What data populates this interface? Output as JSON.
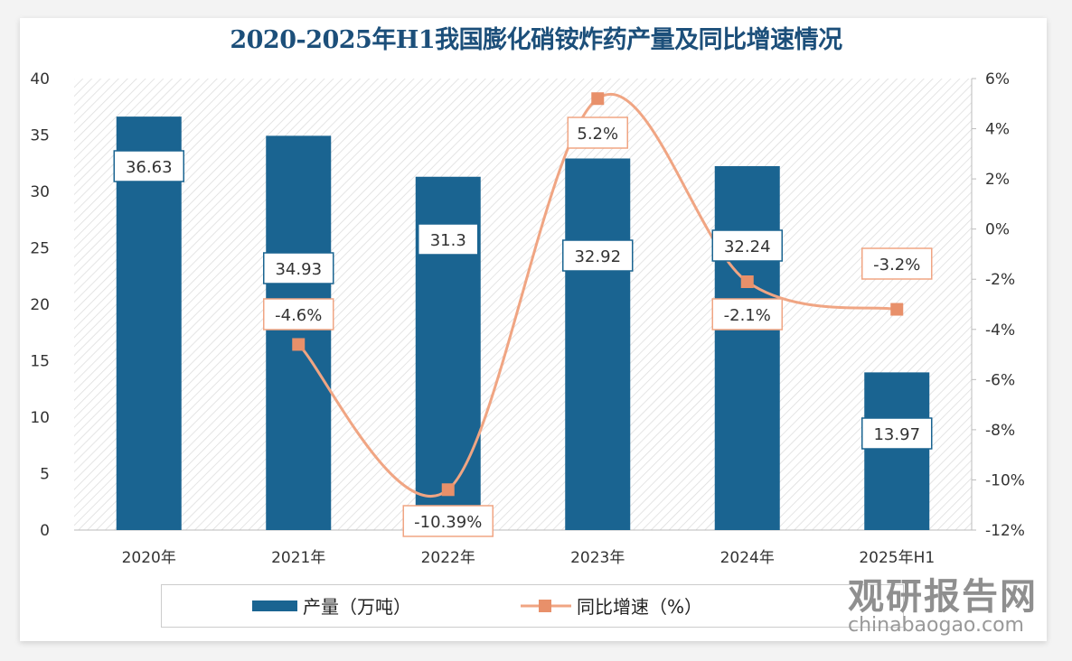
{
  "chart_data": {
    "type": "bar+line",
    "title": "2020-2025年H1我国膨化硝铵炸药产量及同比增速情况",
    "categories": [
      "2020年",
      "2021年",
      "2022年",
      "2023年",
      "2024年",
      "2025年H1"
    ],
    "series": [
      {
        "name": "产量（万吨）",
        "type": "bar",
        "axis": "left",
        "values": [
          36.63,
          34.93,
          31.3,
          32.92,
          32.24,
          13.97
        ],
        "labels": [
          "36.63",
          "34.93",
          "31.3",
          "32.92",
          "32.24",
          "13.97"
        ],
        "color": "#1a6491"
      },
      {
        "name": "同比增速（%）",
        "type": "line",
        "axis": "right",
        "values": [
          null,
          -4.6,
          -10.39,
          5.2,
          -2.1,
          -3.2
        ],
        "labels": [
          "",
          "-4.6%",
          "-10.39%",
          "5.2%",
          "-2.1%",
          "-3.2%"
        ],
        "color": "#f0a583",
        "marker_color": "#e8906a"
      }
    ],
    "y_left": {
      "range": [
        0,
        40
      ],
      "ticks": [
        "0",
        "5",
        "10",
        "15",
        "20",
        "25",
        "30",
        "35",
        "40"
      ]
    },
    "y_right": {
      "range": [
        -12,
        6
      ],
      "ticks": [
        "-12%",
        "-10%",
        "-8%",
        "-6%",
        "-4%",
        "-2%",
        "0%",
        "2%",
        "4%",
        "6%"
      ]
    },
    "grid": false,
    "background": "diagonal hatch",
    "legend_placement": "bottom"
  },
  "watermark": {
    "cn": "观研报告网",
    "en": "chinabaogao.com"
  }
}
